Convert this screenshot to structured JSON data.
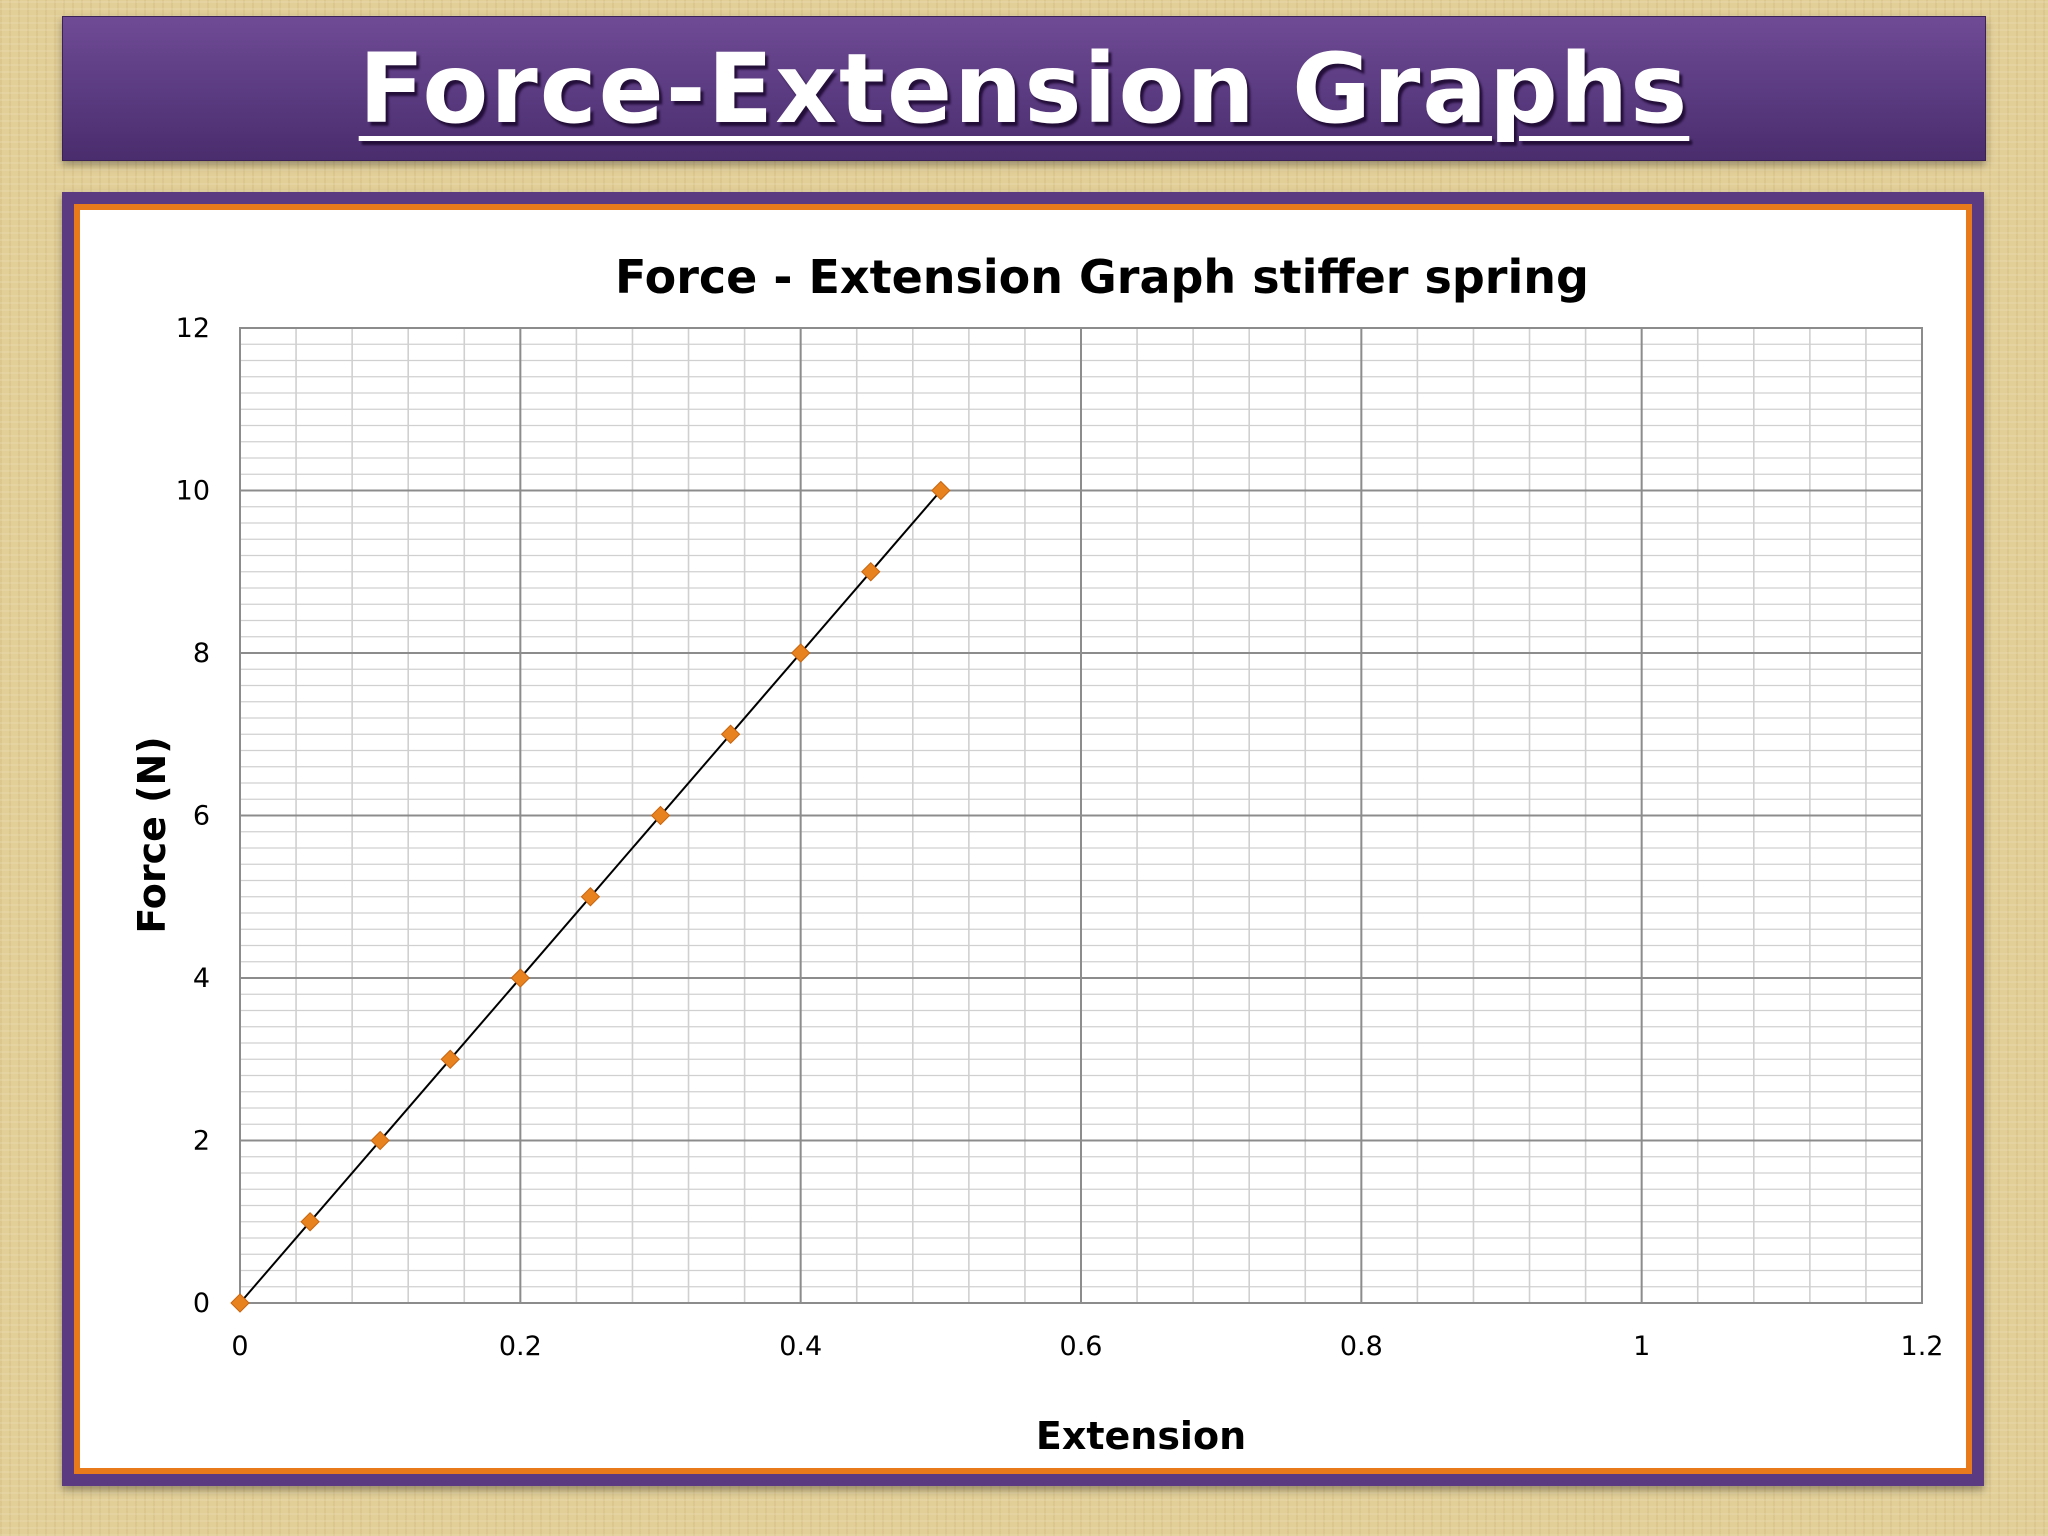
{
  "slide": {
    "title": "Force-Extension Graphs"
  },
  "colors": {
    "banner": "#5b3a82",
    "frame_border": "#e87a1c",
    "marker": "#e8821f",
    "line": "#000000",
    "grid": "#bfbfbf"
  },
  "chart_data": {
    "type": "scatter",
    "title": "Force - Extension Graph stiffer spring",
    "xlabel": "Extension",
    "ylabel": "Force (N)",
    "xlim": [
      0,
      1.2
    ],
    "ylim": [
      0,
      12
    ],
    "xticks": [
      0,
      0.2,
      0.4,
      0.6,
      0.8,
      1,
      1.2
    ],
    "yticks": [
      0,
      2,
      4,
      6,
      8,
      10,
      12
    ],
    "x_tick_labels": [
      "0",
      "0.2",
      "0.4",
      "0.6",
      "0.8",
      "1",
      "1.2"
    ],
    "y_tick_labels": [
      "0",
      "2",
      "4",
      "6",
      "8",
      "10",
      "12"
    ],
    "grid": true,
    "minor_grid": true,
    "series": [
      {
        "marker": "diamond",
        "x": [
          0,
          0.05,
          0.1,
          0.15,
          0.2,
          0.25,
          0.3,
          0.35,
          0.4,
          0.45,
          0.5
        ],
        "y": [
          0,
          1,
          2,
          3,
          4,
          5,
          6,
          7,
          8,
          9,
          10
        ],
        "line_of_best_fit": true
      }
    ]
  }
}
